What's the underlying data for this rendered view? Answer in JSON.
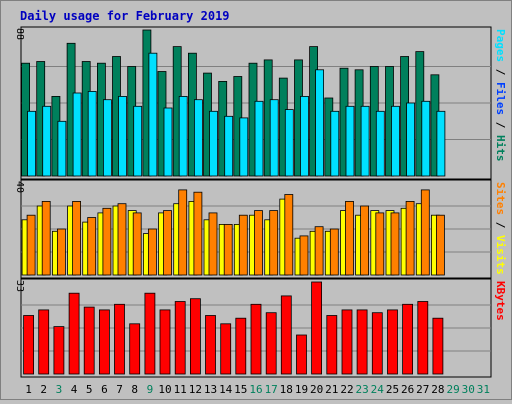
{
  "colors": {
    "background": "#c0c0c0",
    "panel": "#c0c0c0",
    "hits": "#00805c",
    "files": "#0040ff",
    "pages": "#00e0ff",
    "visits": "#ffff00",
    "sites": "#ff8000",
    "kbytes": "#ff0000",
    "title": "#0000c0",
    "weekend": "#00805c",
    "weekday": "#000000",
    "future": "#00805c"
  },
  "chart_data": {
    "type": "bar",
    "title": "Daily usage for February 2019",
    "days": [
      "1",
      "2",
      "3",
      "4",
      "5",
      "6",
      "7",
      "8",
      "9",
      "10",
      "11",
      "12",
      "13",
      "14",
      "15",
      "16",
      "17",
      "18",
      "19",
      "20",
      "21",
      "22",
      "23",
      "24",
      "25",
      "26",
      "27",
      "28",
      "29",
      "30",
      "31"
    ],
    "day_kind": [
      "weekday",
      "weekday",
      "weekend",
      "weekday",
      "weekday",
      "weekday",
      "weekday",
      "weekday",
      "weekend",
      "weekday",
      "weekday",
      "weekday",
      "weekday",
      "weekday",
      "weekday",
      "weekend",
      "weekend",
      "weekday",
      "weekday",
      "weekday",
      "weekday",
      "weekday",
      "weekend",
      "weekend",
      "weekday",
      "weekday",
      "weekday",
      "weekday",
      "future",
      "future",
      "future"
    ],
    "panels": [
      {
        "name": "top",
        "ymax": "88",
        "legend": [
          {
            "text": "Pages",
            "colorKey": "pages"
          },
          {
            "text": " / ",
            "colorKey": "weekday"
          },
          {
            "text": "Files",
            "colorKey": "files"
          },
          {
            "text": " / ",
            "colorKey": "weekday"
          },
          {
            "text": "Hits",
            "colorKey": "hits"
          }
        ],
        "series": [
          {
            "colorKey": "hits",
            "values": [
              68,
              69,
              48,
              80,
              69,
              68,
              72,
              66,
              88,
              63,
              78,
              74,
              62,
              57,
              60,
              68,
              70,
              59,
              70,
              78,
              47,
              65,
              64,
              66,
              66,
              72,
              75,
              61
            ]
          },
          {
            "colorKey": "pages",
            "values": [
              39,
              42,
              33,
              50,
              51,
              46,
              48,
              42,
              74,
              41,
              48,
              46,
              39,
              36,
              35,
              45,
              46,
              40,
              48,
              64,
              39,
              42,
              42,
              39,
              42,
              44,
              45,
              39
            ]
          }
        ]
      },
      {
        "name": "middle",
        "ymax": "40",
        "legend": [
          {
            "text": "Sites",
            "colorKey": "sites"
          },
          {
            "text": " / ",
            "colorKey": "weekday"
          },
          {
            "text": "Visits",
            "colorKey": "visits"
          }
        ],
        "series": [
          {
            "colorKey": "visits",
            "values": [
              24,
              30,
              19,
              30,
              23,
              27,
              30,
              28,
              18,
              27,
              31,
              32,
              24,
              22,
              22,
              26,
              24,
              33,
              16,
              19,
              19,
              28,
              26,
              28,
              28,
              29,
              31,
              26
            ]
          },
          {
            "colorKey": "sites",
            "values": [
              26,
              32,
              20,
              32,
              25,
              29,
              31,
              27,
              20,
              28,
              37,
              36,
              27,
              22,
              26,
              28,
              28,
              35,
              17,
              21,
              20,
              32,
              30,
              27,
              27,
              32,
              37,
              26
            ]
          }
        ]
      },
      {
        "name": "bottom",
        "ymax": "33",
        "legend": [
          {
            "text": "KBytes",
            "colorKey": "kbytes"
          }
        ],
        "series": [
          {
            "colorKey": "kbytes",
            "values": [
              21,
              23,
              17,
              29,
              24,
              23,
              25,
              18,
              29,
              23,
              26,
              27,
              21,
              18,
              20,
              25,
              22,
              28,
              14,
              33,
              21,
              23,
              23,
              22,
              23,
              25,
              26,
              20
            ]
          }
        ]
      }
    ]
  }
}
